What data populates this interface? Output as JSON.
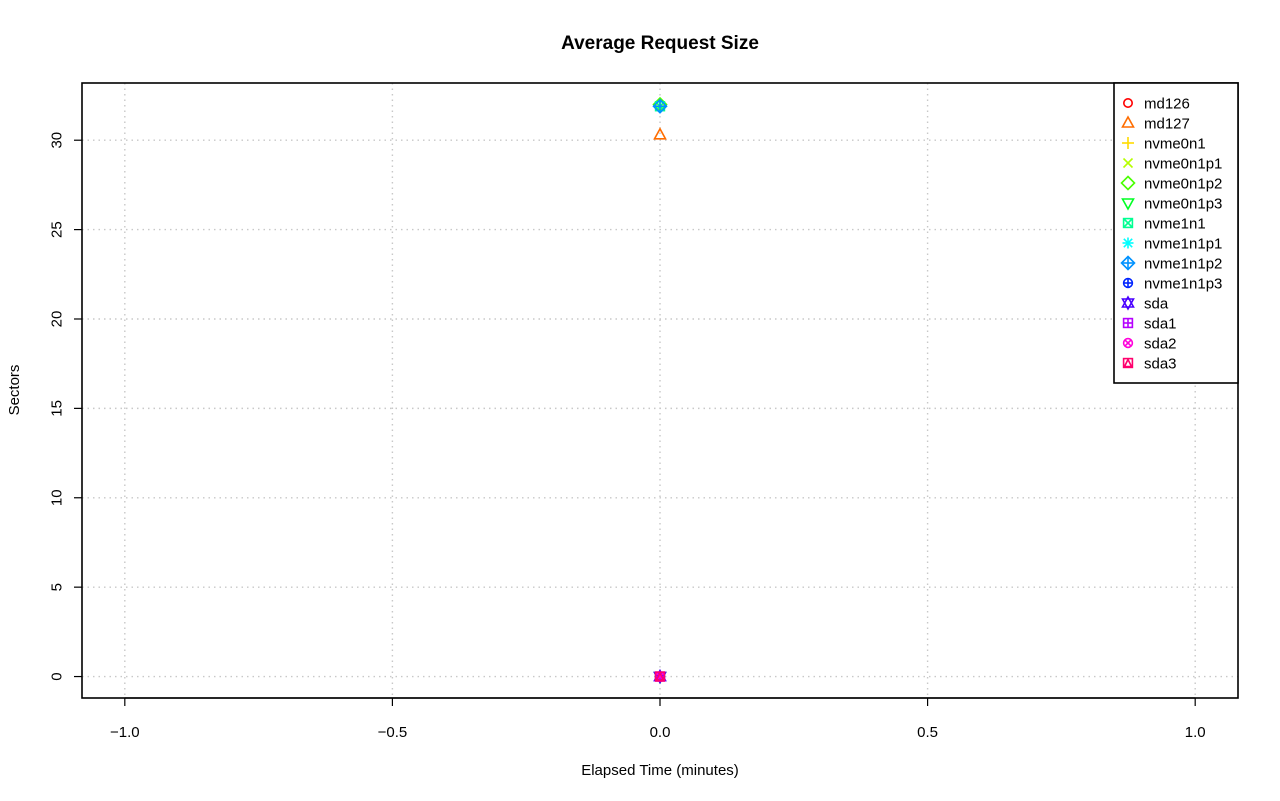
{
  "chart_data": {
    "type": "scatter",
    "title": "Average Request Size",
    "xlabel": "Elapsed Time (minutes)",
    "ylabel": "Sectors",
    "xlim": [
      -1.08,
      1.08
    ],
    "ylim": [
      -1.2,
      33.2
    ],
    "x_ticks": [
      {
        "value": -1.0,
        "label": "−1.0"
      },
      {
        "value": -0.5,
        "label": "−0.5"
      },
      {
        "value": 0.0,
        "label": "0.0"
      },
      {
        "value": 0.5,
        "label": "0.5"
      },
      {
        "value": 1.0,
        "label": "1.0"
      }
    ],
    "y_ticks": [
      {
        "value": 0,
        "label": "0"
      },
      {
        "value": 5,
        "label": "5"
      },
      {
        "value": 10,
        "label": "10"
      },
      {
        "value": 15,
        "label": "15"
      },
      {
        "value": 20,
        "label": "20"
      },
      {
        "value": 25,
        "label": "25"
      },
      {
        "value": 30,
        "label": "30"
      }
    ],
    "grid": true,
    "legend_position": "top-right",
    "series": [
      {
        "name": "md126",
        "marker": "circle",
        "color": "#FF0000",
        "x": [
          0
        ],
        "y": [
          0
        ]
      },
      {
        "name": "md127",
        "marker": "triangle-up",
        "color": "#FF6D00",
        "x": [
          0
        ],
        "y": [
          30.3
        ]
      },
      {
        "name": "nvme0n1",
        "marker": "plus",
        "color": "#FFDB00",
        "x": [
          0
        ],
        "y": [
          32.0
        ]
      },
      {
        "name": "nvme0n1p1",
        "marker": "cross",
        "color": "#B6FF00",
        "x": [
          0
        ],
        "y": [
          0
        ]
      },
      {
        "name": "nvme0n1p2",
        "marker": "diamond",
        "color": "#49FF00",
        "x": [
          0
        ],
        "y": [
          32.0
        ]
      },
      {
        "name": "nvme0n1p3",
        "marker": "triangle-down",
        "color": "#00FF24",
        "x": [
          0
        ],
        "y": [
          0
        ]
      },
      {
        "name": "nvme1n1",
        "marker": "square-cross",
        "color": "#00FF92",
        "x": [
          0
        ],
        "y": [
          31.9
        ]
      },
      {
        "name": "nvme1n1p1",
        "marker": "asterisk",
        "color": "#00FFFF",
        "x": [
          0
        ],
        "y": [
          0
        ]
      },
      {
        "name": "nvme1n1p2",
        "marker": "diamond-plus",
        "color": "#0092FF",
        "x": [
          0
        ],
        "y": [
          31.9
        ]
      },
      {
        "name": "nvme1n1p3",
        "marker": "circle-plus",
        "color": "#0024FF",
        "x": [
          0
        ],
        "y": [
          0
        ]
      },
      {
        "name": "sda",
        "marker": "star-of-david",
        "color": "#4900FF",
        "x": [
          0
        ],
        "y": [
          0
        ]
      },
      {
        "name": "sda1",
        "marker": "square-plus",
        "color": "#B600FF",
        "x": [
          0
        ],
        "y": [
          0
        ]
      },
      {
        "name": "sda2",
        "marker": "circle-cross",
        "color": "#FF00DB",
        "x": [
          0
        ],
        "y": [
          0
        ]
      },
      {
        "name": "sda3",
        "marker": "square-triangle",
        "color": "#FF006D",
        "x": [
          0
        ],
        "y": [
          0
        ]
      }
    ]
  }
}
